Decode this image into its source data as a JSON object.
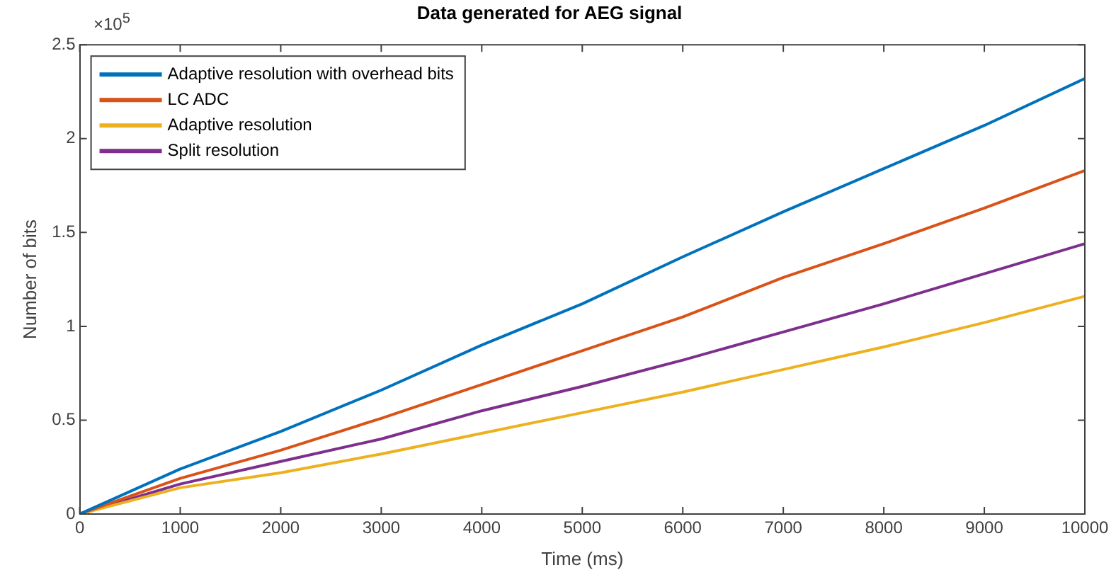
{
  "chart_data": {
    "type": "line",
    "title": "Data generated for AEG signal",
    "xlabel": "Time (ms)",
    "ylabel": "Number of bits",
    "annotations": [
      "×10$^{5}$"
    ],
    "x": [
      0,
      1000,
      2000,
      3000,
      4000,
      5000,
      6000,
      7000,
      8000,
      9000,
      10000
    ],
    "series": [
      {
        "name": "Adaptive resolution with overhead bits",
        "color": "#0072bd",
        "values": [
          0,
          0.24,
          0.44,
          0.66,
          0.9,
          1.12,
          1.37,
          1.61,
          1.84,
          2.07,
          2.32
        ]
      },
      {
        "name": "LC ADC",
        "color": "#d95319",
        "values": [
          0,
          0.19,
          0.34,
          0.51,
          0.69,
          0.87,
          1.05,
          1.26,
          1.44,
          1.63,
          1.83
        ]
      },
      {
        "name": "Adaptive resolution",
        "color": "#edb120",
        "values": [
          0,
          0.14,
          0.22,
          0.32,
          0.43,
          0.54,
          0.65,
          0.77,
          0.89,
          1.02,
          1.16
        ]
      },
      {
        "name": "Split resolution",
        "color": "#7e2f8e",
        "values": [
          0,
          0.16,
          0.28,
          0.4,
          0.55,
          0.68,
          0.82,
          0.97,
          1.12,
          1.28,
          1.44
        ]
      }
    ],
    "xlim": [
      0,
      10000
    ],
    "xticks": [
      0,
      1000,
      2000,
      3000,
      4000,
      5000,
      6000,
      7000,
      8000,
      9000,
      10000
    ],
    "ylim": [
      0,
      2.5
    ],
    "yticks": [
      0,
      0.5,
      1,
      1.5,
      2,
      2.5
    ],
    "grid": false,
    "legend": "top left",
    "marker": "none",
    "line_style": "solid"
  }
}
